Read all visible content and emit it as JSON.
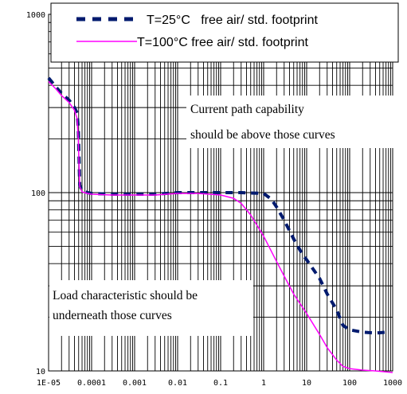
{
  "chart_data": {
    "type": "line",
    "title": "",
    "xlabel": "",
    "ylabel": "",
    "x_scale": "log",
    "y_scale": "log",
    "xlim": [
      1e-05,
      1000
    ],
    "ylim": [
      10,
      1000
    ],
    "x_ticks": [
      {
        "value": 1e-05,
        "label": "1E-05"
      },
      {
        "value": 0.0001,
        "label": "0.0001"
      },
      {
        "value": 0.001,
        "label": "0.001"
      },
      {
        "value": 0.01,
        "label": "0.01"
      },
      {
        "value": 0.1,
        "label": "0.1"
      },
      {
        "value": 1,
        "label": "1"
      },
      {
        "value": 10,
        "label": "10"
      },
      {
        "value": 100,
        "label": "100"
      },
      {
        "value": 1000,
        "label": "1000"
      }
    ],
    "y_ticks": [
      {
        "value": 10,
        "label": "10"
      },
      {
        "value": 100,
        "label": "100"
      },
      {
        "value": 1000,
        "label": "1000"
      }
    ],
    "grid": true,
    "legend_position": "top",
    "series": [
      {
        "name": "T=25°C   free air/ std. footprint",
        "color": "#001a6e",
        "style": "dashed",
        "x": [
          1e-05,
          1.5e-05,
          2e-05,
          3e-05,
          4e-05,
          4.6e-05,
          4.9e-05,
          5.3e-05,
          6e-05,
          8e-05,
          0.0001,
          0.0003,
          0.001,
          0.003,
          0.01,
          0.03,
          0.1,
          0.3,
          1,
          1.5,
          2,
          3,
          5,
          8,
          10,
          20,
          30,
          50,
          70,
          100,
          200,
          400,
          700
        ],
        "y": [
          440,
          390,
          360,
          330,
          300,
          280,
          230,
          110,
          103,
          100,
          99,
          98,
          98,
          98,
          100,
          100,
          100,
          100,
          99,
          92,
          83,
          70,
          55,
          45,
          42,
          33,
          27,
          22,
          18,
          17,
          16.5,
          16.3,
          16.5
        ]
      },
      {
        "name": "T=100°C free air/ std. footprint",
        "color": "#ff00ff",
        "style": "solid",
        "x": [
          1e-05,
          1.5e-05,
          2e-05,
          3e-05,
          4e-05,
          4.6e-05,
          4.9e-05,
          5.3e-05,
          6e-05,
          8e-05,
          0.0001,
          0.0003,
          0.001,
          0.003,
          0.01,
          0.03,
          0.1,
          0.2,
          0.3,
          0.5,
          1,
          2,
          3,
          5,
          10,
          20,
          30,
          50,
          70,
          100,
          200,
          400,
          1000
        ],
        "y": [
          420,
          380,
          350,
          320,
          290,
          260,
          200,
          108,
          101,
          99,
          98,
          97,
          97,
          97,
          99,
          99,
          97,
          93,
          87,
          75,
          57,
          41,
          34,
          27,
          21,
          16,
          13.5,
          11.5,
          10.6,
          10.3,
          10.1,
          10.0,
          9.8
        ]
      }
    ],
    "annotations": [
      {
        "lines": [
          "Current path capability",
          "should be above those curves"
        ]
      },
      {
        "lines": [
          "Load characteristic should be",
          "underneath those curves"
        ]
      }
    ]
  }
}
